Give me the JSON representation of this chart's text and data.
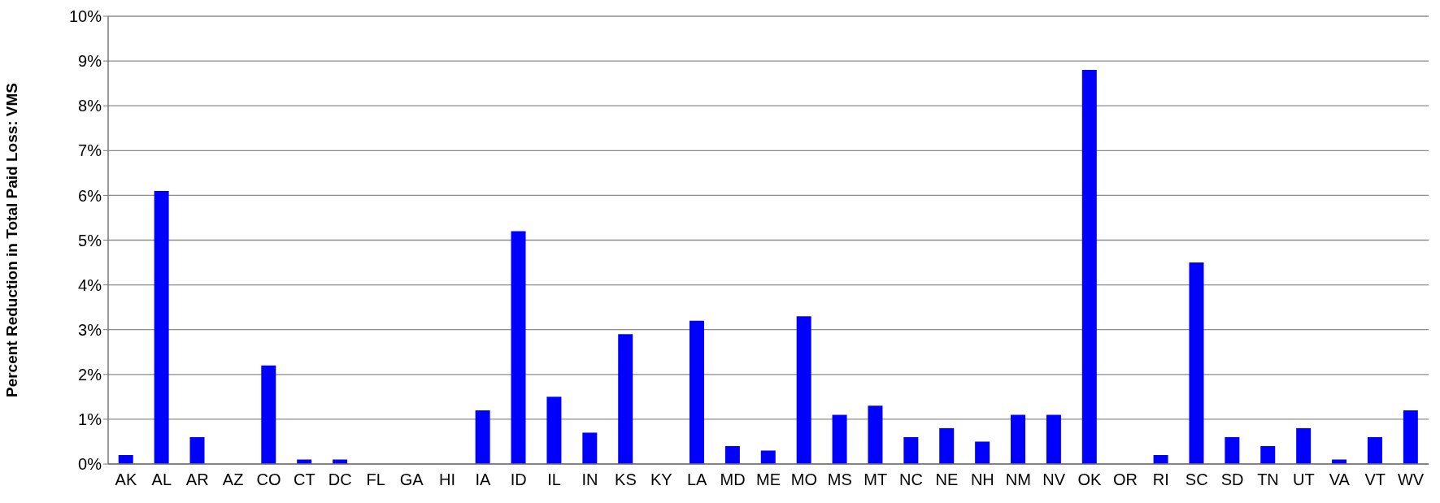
{
  "chart_data": {
    "type": "bar",
    "ylabel": "Percent Reduction in Total Paid Loss: VMS",
    "categories": [
      "AK",
      "AL",
      "AR",
      "AZ",
      "CO",
      "CT",
      "DC",
      "FL",
      "GA",
      "HI",
      "IA",
      "ID",
      "IL",
      "IN",
      "KS",
      "KY",
      "LA",
      "MD",
      "ME",
      "MO",
      "MS",
      "MT",
      "NC",
      "NE",
      "NH",
      "NM",
      "NV",
      "OK",
      "OR",
      "RI",
      "SC",
      "SD",
      "TN",
      "UT",
      "VA",
      "VT",
      "WV"
    ],
    "values": [
      0.2,
      6.1,
      0.6,
      0,
      2.2,
      0.1,
      0.1,
      0,
      0,
      0,
      1.2,
      5.2,
      1.5,
      0.7,
      2.9,
      0,
      3.2,
      0.4,
      0.3,
      3.3,
      1.1,
      1.3,
      0.6,
      0.8,
      0.5,
      1.1,
      1.1,
      8.8,
      0,
      0.2,
      4.5,
      0.6,
      0.4,
      0.8,
      0.1,
      0.6,
      1.2
    ],
    "color": "#0000ff",
    "ylim": [
      0,
      10
    ],
    "yticks": [
      {
        "value": 0,
        "label": "0%"
      },
      {
        "value": 1,
        "label": "1%"
      },
      {
        "value": 2,
        "label": "2%"
      },
      {
        "value": 3,
        "label": "3%"
      },
      {
        "value": 4,
        "label": "4%"
      },
      {
        "value": 5,
        "label": "5%"
      },
      {
        "value": 6,
        "label": "6%"
      },
      {
        "value": 7,
        "label": "7%"
      },
      {
        "value": 8,
        "label": "8%"
      },
      {
        "value": 9,
        "label": "9%"
      },
      {
        "value": 10,
        "label": "10%"
      }
    ],
    "grid": "y"
  }
}
